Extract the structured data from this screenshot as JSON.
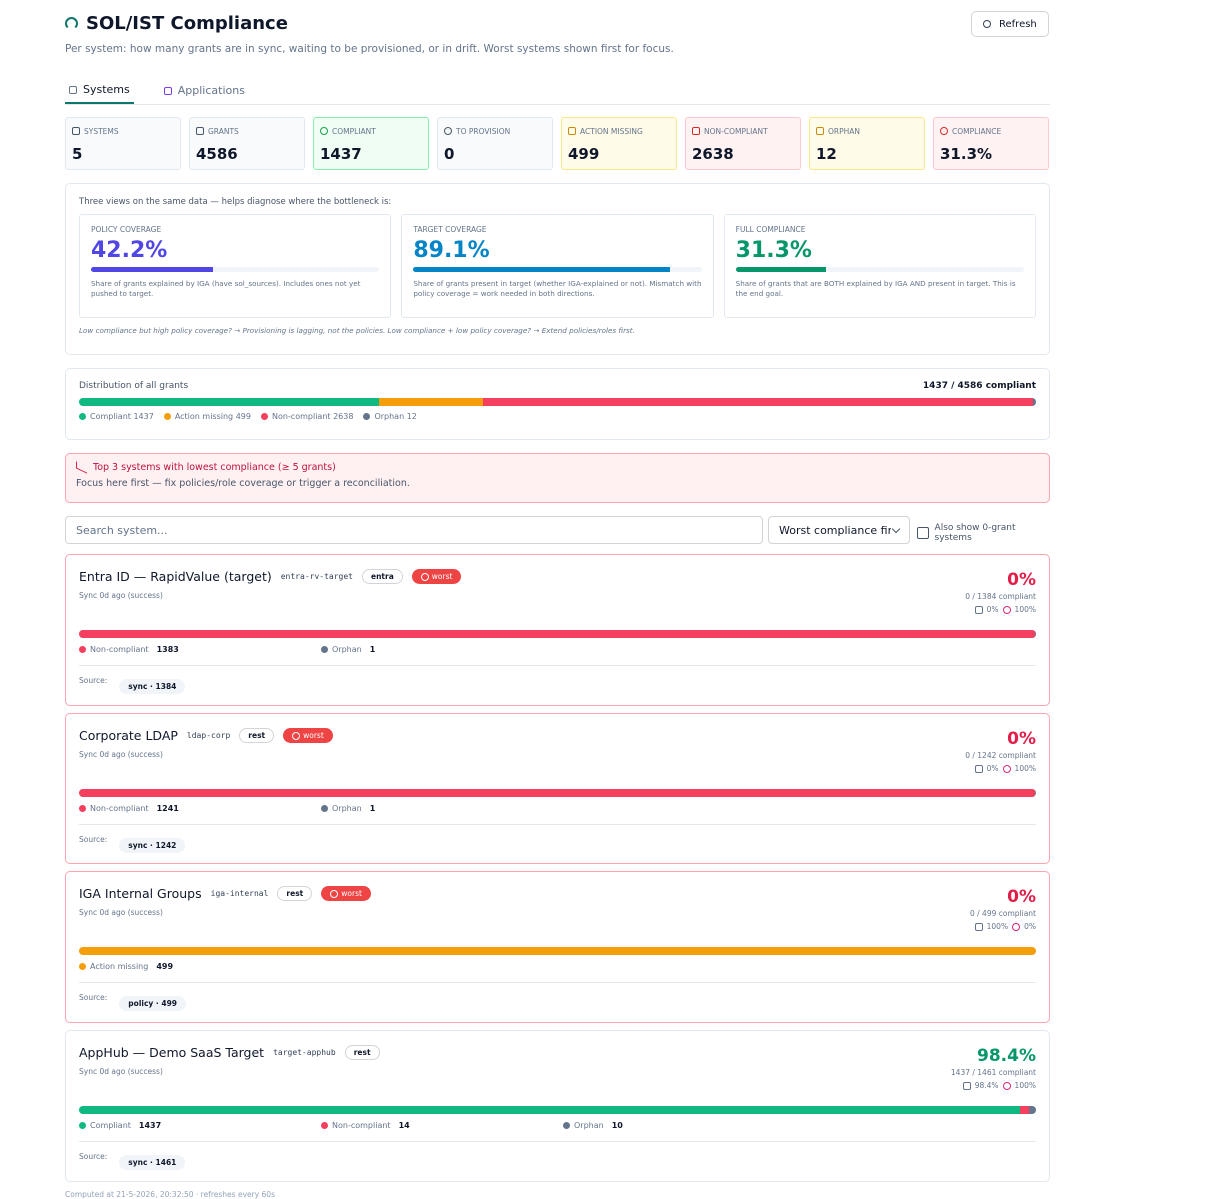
{
  "header": {
    "title": "SOL/IST Compliance",
    "subtitle": "Per system: how many grants are in sync, waiting to be provisioned, or in drift. Worst systems shown first for focus.",
    "refresh": "Refresh"
  },
  "tabs": [
    "Systems",
    "Applications"
  ],
  "stats": [
    {
      "label": "SYSTEMS",
      "value": 5
    },
    {
      "label": "GRANTS",
      "value": 4586
    },
    {
      "label": "COMPLIANT",
      "value": 1437
    },
    {
      "label": "TO PROVISION",
      "value": 0
    },
    {
      "label": "ACTION MISSING",
      "value": 499
    },
    {
      "label": "NON-COMPLIANT",
      "value": 2638
    },
    {
      "label": "ORPHAN",
      "value": 12
    },
    {
      "label": "COMPLIANCE",
      "value": "31.3%"
    }
  ],
  "views": {
    "intro": "Three views on the same data — helps diagnose where the bottleneck is:",
    "cards": [
      {
        "label": "POLICY COVERAGE",
        "value": 42.2,
        "value_label": "42.2%",
        "color": "#4f46e5",
        "desc": "Share of grants explained by IGA (have sol_sources). Includes ones not yet pushed to target."
      },
      {
        "label": "TARGET COVERAGE",
        "value": 89.1,
        "value_label": "89.1%",
        "color": "#0284c7",
        "desc": "Share of grants present in target (whether IGA-explained or not). Mismatch with policy coverage = work needed in both directions."
      },
      {
        "label": "FULL COMPLIANCE",
        "value": 31.3,
        "value_label": "31.3%",
        "color": "#059669",
        "desc": "Share of grants that are BOTH explained by IGA AND present in target. This is the end goal."
      }
    ],
    "note": "Low compliance but high policy coverage? → Provisioning is lagging, not the policies. Low compliance + low policy coverage? → Extend policies/roles first."
  },
  "distribution": {
    "title": "Distribution of all grants",
    "summary": "1437 / 4586 compliant",
    "segments": [
      {
        "name": "Compliant",
        "value": 1437,
        "color": "#10b981"
      },
      {
        "name": "Action missing",
        "value": 499,
        "color": "#f59e0b"
      },
      {
        "name": "Non-compliant",
        "value": 2638,
        "color": "#f43f5e"
      },
      {
        "name": "Orphan",
        "value": 12,
        "color": "#64748b"
      }
    ]
  },
  "alert": {
    "title": "Top 3 systems with lowest compliance (≥ 5 grants)",
    "text": "Focus here first — fix policies/role coverage or trigger a reconciliation."
  },
  "controls": {
    "search": "Search system...",
    "sort": "Worst compliance first",
    "checkbox": "Also show 0-grant systems"
  },
  "source_label": "Source:",
  "systems": [
    {
      "name": "Entra ID — RapidValue (target)",
      "id": "entra-rv-target",
      "type": "entra",
      "badge": "worst",
      "sync": "Sync 0d ago (success)",
      "compliance": 0,
      "compliance_label": "0%",
      "summary": "0 / 1384 compliant",
      "policy": "0%",
      "target": "100%",
      "segments": [
        {
          "name": "Non-compliant",
          "value": 1383,
          "color": "#f43f5e"
        },
        {
          "name": "Orphan",
          "value": 1,
          "color": "#64748b"
        }
      ],
      "sources": [
        "sync · 1384"
      ]
    },
    {
      "name": "Corporate LDAP",
      "id": "ldap-corp",
      "type": "rest",
      "badge": "worst",
      "sync": "Sync 0d ago (success)",
      "compliance": 0,
      "compliance_label": "0%",
      "summary": "0 / 1242 compliant",
      "policy": "0%",
      "target": "100%",
      "segments": [
        {
          "name": "Non-compliant",
          "value": 1241,
          "color": "#f43f5e"
        },
        {
          "name": "Orphan",
          "value": 1,
          "color": "#64748b"
        }
      ],
      "sources": [
        "sync · 1242"
      ]
    },
    {
      "name": "IGA Internal Groups",
      "id": "iga-internal",
      "type": "rest",
      "badge": "worst",
      "sync": "Sync 0d ago (success)",
      "compliance": 0,
      "compliance_label": "0%",
      "summary": "0 / 499 compliant",
      "policy": "100%",
      "target": "0%",
      "segments": [
        {
          "name": "Action missing",
          "value": 499,
          "color": "#f59e0b"
        }
      ],
      "sources": [
        "policy · 499"
      ]
    },
    {
      "name": "AppHub — Demo SaaS Target",
      "id": "target-apphub",
      "type": "rest",
      "sync": "Sync 0d ago (success)",
      "compliance": 98.4,
      "compliance_label": "98.4%",
      "summary": "1437 / 1461 compliant",
      "policy": "98.4%",
      "target": "100%",
      "segments": [
        {
          "name": "Compliant",
          "value": 1437,
          "color": "#10b981"
        },
        {
          "name": "Non-compliant",
          "value": 14,
          "color": "#f43f5e"
        },
        {
          "name": "Orphan",
          "value": 10,
          "color": "#64748b"
        }
      ],
      "sources": [
        "sync · 1461"
      ]
    }
  ],
  "footer": "Computed at 21-5-2026, 20:32:50 · refreshes every 60s"
}
